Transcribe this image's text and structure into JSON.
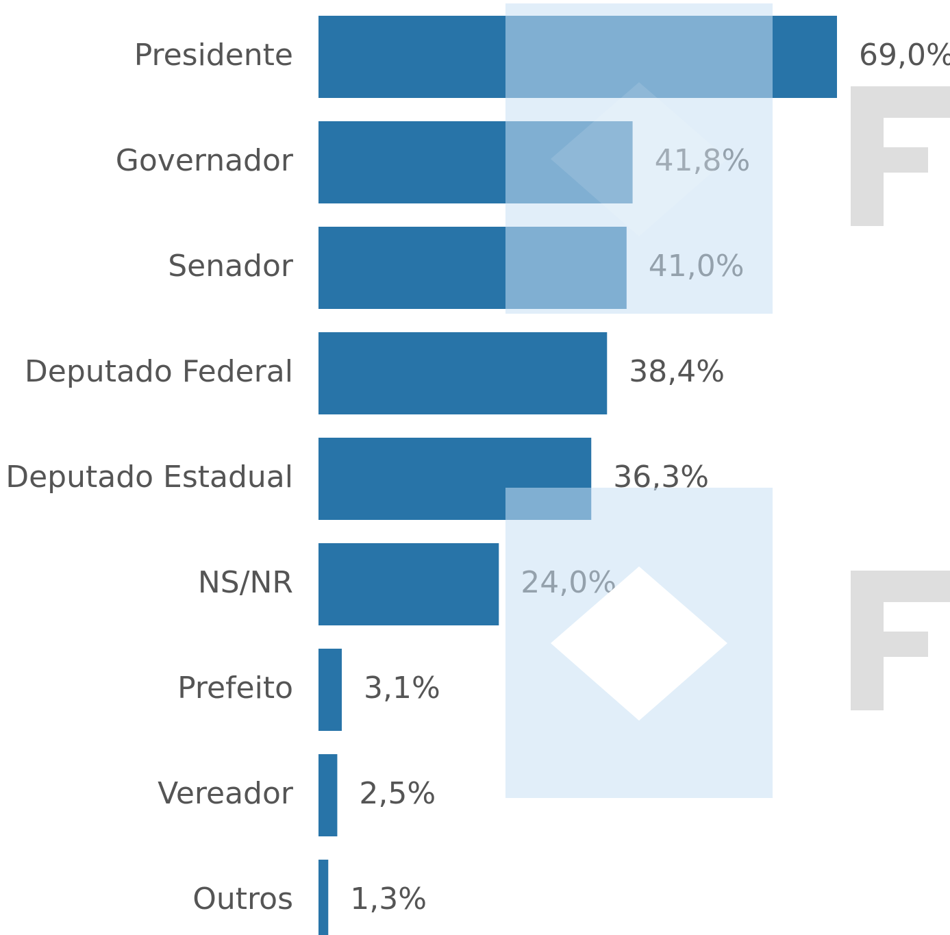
{
  "chart_data": {
    "type": "bar",
    "orientation": "horizontal",
    "categories": [
      "Presidente",
      "Governador",
      "Senador",
      "Deputado Federal",
      "Deputado Estadual",
      "NS/NR",
      "Prefeito",
      "Vereador",
      "Outros"
    ],
    "values": [
      69.0,
      41.8,
      41.0,
      38.4,
      36.3,
      24.0,
      3.1,
      2.5,
      1.3
    ],
    "value_labels": [
      "69,0%",
      "41,8%",
      "41,0%",
      "38,4%",
      "36,3%",
      "24,0%",
      "3,1%",
      "2,5%",
      "1,3%"
    ],
    "color": "#2874a8"
  }
}
